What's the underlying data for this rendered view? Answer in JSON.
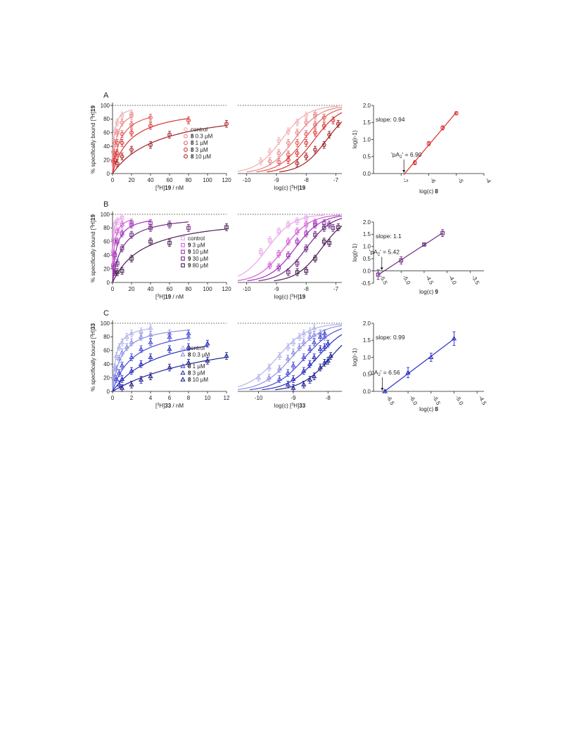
{
  "figure": {
    "colors": {
      "A": [
        "#f0aeb1",
        "#e88486",
        "#e05c5c",
        "#d8312e",
        "#a32225"
      ],
      "B": [
        "#e9a6e8",
        "#d55fd6",
        "#9c34b8",
        "#6e2e82",
        "#4a1f53"
      ],
      "C": [
        "#b3b5ea",
        "#8f91e3",
        "#4b4ed6",
        "#2b2fbf",
        "#212393"
      ]
    },
    "dotted_line_y": 100,
    "panels": [
      {
        "label": "A",
        "saturation": {
          "xlabel_pre": "[",
          "xlabel_sup": "3",
          "xlabel_mid": "H]",
          "xlabel_bold": "19",
          "xlabel_post": " / nM",
          "ylabel_pre": "% specifically bound [",
          "ylabel_sup": "3",
          "ylabel_mid": "H]",
          "ylabel_bold": "19",
          "xlim": [
            0,
            120
          ],
          "xticks": [
            "0",
            "20",
            "40",
            "60",
            "80",
            "100",
            "120"
          ],
          "ylim": [
            0,
            100
          ],
          "yticks": [
            "0",
            "20",
            "40",
            "60",
            "80",
            "100"
          ],
          "marker": "circle",
          "legend": [
            {
              "bold": "",
              "text": "control"
            },
            {
              "bold": "8",
              "text": " 0.3 µM"
            },
            {
              "bold": "8",
              "text": " 1 µM"
            },
            {
              "bold": "8",
              "text": " 3 µM"
            },
            {
              "bold": "8",
              "text": " 10 µM"
            }
          ],
          "series": [
            {
              "points": [
                [
                  0.3,
                  18
                ],
                [
                  0.6,
                  32
                ],
                [
                  1.2,
                  48
                ],
                [
                  2.5,
                  62
                ],
                [
                  5,
                  75
                ],
                [
                  10,
                  85
                ],
                [
                  20,
                  88
                ]
              ],
              "kd": 1.5
            },
            {
              "points": [
                [
                  0.6,
                  18
                ],
                [
                  1.2,
                  30
                ],
                [
                  2.5,
                  45
                ],
                [
                  5,
                  60
                ],
                [
                  10,
                  75
                ],
                [
                  20,
                  85
                ]
              ],
              "kd": 4
            },
            {
              "points": [
                [
                  1.2,
                  17
                ],
                [
                  2.5,
                  28
                ],
                [
                  5,
                  45
                ],
                [
                  10,
                  58
                ],
                [
                  20,
                  72
                ],
                [
                  40,
                  82
                ]
              ],
              "kd": 8.5
            },
            {
              "points": [
                [
                  2.5,
                  20
                ],
                [
                  5,
                  30
                ],
                [
                  10,
                  45
                ],
                [
                  20,
                  60
                ],
                [
                  40,
                  70
                ],
                [
                  80,
                  78
                ]
              ],
              "kd": 19
            },
            {
              "points": [
                [
                  5,
                  15
                ],
                [
                  10,
                  25
                ],
                [
                  20,
                  35
                ],
                [
                  40,
                  42
                ],
                [
                  60,
                  57
                ],
                [
                  120,
                  73
                ]
              ],
              "kd": 50
            }
          ]
        },
        "log": {
          "xlabel_pre": "log(c) [",
          "xlabel_sup": "3",
          "xlabel_mid": "H]",
          "xlabel_bold": "19",
          "xlim": [
            -10.3,
            -6.8
          ],
          "xticks": [
            "-10",
            "-9",
            "-8",
            "-7"
          ],
          "ylim": [
            0,
            100
          ]
        },
        "schild": {
          "xlabel_pre": "log(c) ",
          "xlabel_bold": "8",
          "ylabel": "log(r-1)",
          "xlim": [
            -8,
            -4
          ],
          "xticks": [
            "-7",
            "-6",
            "-5",
            "-4"
          ],
          "ylim": [
            0,
            2
          ],
          "yticks": [
            "0.0",
            "0.5",
            "1.0",
            "1.5",
            "2.0"
          ],
          "points": [
            [
              -6.5,
              0.32
            ],
            [
              -6,
              0.88
            ],
            [
              -5.5,
              1.34
            ],
            [
              -5,
              1.77
            ]
          ],
          "errors": [
            0.06,
            0.06,
            0.06,
            0.05
          ],
          "fit_x": [
            -6.9,
            -5
          ],
          "slope_text": "slope: 0.94",
          "pa2_pre": "'pA",
          "pa2_sub": "2",
          "pa2_post": "' = 6.90",
          "pa2_value": -6.9
        }
      },
      {
        "label": "B",
        "saturation": {
          "xlabel_pre": "[",
          "xlabel_sup": "3",
          "xlabel_mid": "H]",
          "xlabel_bold": "19",
          "xlabel_post": " / nM",
          "ylabel_pre": "% specifically bound [",
          "ylabel_sup": "3",
          "ylabel_mid": "H]",
          "ylabel_bold": "19",
          "xlim": [
            0,
            120
          ],
          "xticks": [
            "0",
            "20",
            "40",
            "60",
            "80",
            "100",
            "120"
          ],
          "ylim": [
            0,
            100
          ],
          "yticks": [
            "0",
            "20",
            "40",
            "60",
            "80",
            "100"
          ],
          "marker": "square",
          "legend": [
            {
              "bold": "",
              "text": "control"
            },
            {
              "bold": "9",
              "text": " 3 µM"
            },
            {
              "bold": "9",
              "text": " 10 µM"
            },
            {
              "bold": "9",
              "text": " 30 µM"
            },
            {
              "bold": "9",
              "text": " 80 µM"
            }
          ],
          "series": [
            {
              "points": [
                [
                  0.3,
                  45
                ],
                [
                  0.6,
                  62
                ],
                [
                  1.2,
                  75
                ],
                [
                  2.5,
                  85
                ],
                [
                  5,
                  90
                ],
                [
                  10,
                  95
                ]
              ],
              "kd": 0.5
            },
            {
              "points": [
                [
                  0.6,
                  25
                ],
                [
                  1.2,
                  42
                ],
                [
                  2.5,
                  60
                ],
                [
                  5,
                  75
                ],
                [
                  10,
                  85
                ],
                [
                  20,
                  88
                ]
              ],
              "kd": 1.8
            },
            {
              "points": [
                [
                  1.2,
                  22
                ],
                [
                  2.5,
                  40
                ],
                [
                  5,
                  60
                ],
                [
                  10,
                  72
                ],
                [
                  20,
                  85
                ],
                [
                  40,
                  87
                ]
              ],
              "kd": 4.2
            },
            {
              "points": [
                [
                  2.5,
                  15
                ],
                [
                  5,
                  28
                ],
                [
                  10,
                  50
                ],
                [
                  20,
                  70
                ],
                [
                  40,
                  80
                ],
                [
                  60,
                  85
                ],
                [
                  80,
                  80
                ]
              ],
              "kd": 10
            },
            {
              "points": [
                [
                  5,
                  15
                ],
                [
                  10,
                  17
                ],
                [
                  20,
                  35
                ],
                [
                  40,
                  60
                ],
                [
                  60,
                  58
                ],
                [
                  120,
                  81
                ]
              ],
              "kd": 33
            }
          ]
        },
        "log": {
          "xlabel_pre": "log(c) [",
          "xlabel_sup": "3",
          "xlabel_mid": "H]",
          "xlabel_bold": "19",
          "xlim": [
            -10.3,
            -6.8
          ],
          "xticks": [
            "-10",
            "-9",
            "-8",
            "-7"
          ],
          "ylim": [
            0,
            100
          ]
        },
        "schild": {
          "xlabel_pre": "log(c) ",
          "xlabel_bold": "9",
          "ylabel": "log(r-1)",
          "xlim": [
            -5.6,
            -3.2
          ],
          "xticks": [
            "-5.5",
            "-5.0",
            "-4.5",
            "-4.0",
            "-3.5"
          ],
          "ylim": [
            -0.5,
            2
          ],
          "yticks": [
            "-0.5",
            "0.0",
            "0.5",
            "1.0",
            "1.5",
            "2.0"
          ],
          "points": [
            [
              -5.5,
              -0.15
            ],
            [
              -5,
              0.43
            ],
            [
              -4.5,
              1.08
            ],
            [
              -4.1,
              1.55
            ]
          ],
          "errors": [
            0.2,
            0.15,
            0.04,
            0.14
          ],
          "fit_x": [
            -5.5,
            -4.1
          ],
          "slope_text": "slope: 1.1",
          "pa2_pre": "'pA",
          "pa2_sub": "2",
          "pa2_post": "' = 5.42",
          "pa2_value": -5.42
        }
      },
      {
        "label": "C",
        "saturation": {
          "xlabel_pre": "[",
          "xlabel_sup": "3",
          "xlabel_mid": "H]",
          "xlabel_bold": "33",
          "xlabel_post": " / nM",
          "ylabel_pre": "% specifically bound [",
          "ylabel_sup": "3",
          "ylabel_mid": "H]",
          "ylabel_bold": "33",
          "xlim": [
            0,
            12
          ],
          "xticks": [
            "0",
            "2",
            "4",
            "6",
            "8",
            "10",
            "12"
          ],
          "ylim": [
            0,
            100
          ],
          "yticks": [
            "0",
            "20",
            "40",
            "60",
            "80",
            "100"
          ],
          "marker": "triangle",
          "legend": [
            {
              "bold": "",
              "text": "control"
            },
            {
              "bold": "8",
              "text": " 0.3 µM"
            },
            {
              "bold": "8",
              "text": " 1 µM"
            },
            {
              "bold": "8",
              "text": " 3 µM"
            },
            {
              "bold": "8",
              "text": " 10 µM"
            }
          ],
          "series": [
            {
              "points": [
                [
                  0.1,
                  20
                ],
                [
                  0.2,
                  35
                ],
                [
                  0.4,
                  52
                ],
                [
                  0.7,
                  65
                ],
                [
                  1,
                  72
                ],
                [
                  1.5,
                  80
                ],
                [
                  2,
                  85
                ],
                [
                  3,
                  88
                ],
                [
                  4,
                  93
                ]
              ],
              "kd": 0.35
            },
            {
              "points": [
                [
                  0.2,
                  20
                ],
                [
                  0.4,
                  33
                ],
                [
                  0.7,
                  48
                ],
                [
                  1,
                  57
                ],
                [
                  1.5,
                  65
                ],
                [
                  2,
                  72
                ],
                [
                  3,
                  80
                ],
                [
                  4,
                  83
                ],
                [
                  6,
                  85
                ],
                [
                  8,
                  80
                ]
              ],
              "kd": 0.9
            },
            {
              "points": [
                [
                  0.4,
                  18
                ],
                [
                  0.7,
                  27
                ],
                [
                  1,
                  38
                ],
                [
                  2,
                  50
                ],
                [
                  3,
                  62
                ],
                [
                  4,
                  72
                ],
                [
                  6,
                  80
                ],
                [
                  8,
                  85
                ]
              ],
              "kd": 2.2
            },
            {
              "points": [
                [
                  0.7,
                  10
                ],
                [
                  1,
                  18
                ],
                [
                  2,
                  30
                ],
                [
                  3,
                  40
                ],
                [
                  4,
                  50
                ],
                [
                  6,
                  62
                ],
                [
                  8,
                  65
                ],
                [
                  10,
                  70
                ]
              ],
              "kd": 5
            },
            {
              "points": [
                [
                  1,
                  5
                ],
                [
                  2,
                  10
                ],
                [
                  3,
                  17
                ],
                [
                  4,
                  22
                ],
                [
                  6,
                  35
                ],
                [
                  8,
                  42
                ],
                [
                  10,
                  45
                ],
                [
                  12,
                  52
                ]
              ],
              "kd": 12
            }
          ]
        },
        "log": {
          "xlabel_pre": "log(c) [",
          "xlabel_sup": "3",
          "xlabel_mid": "H]",
          "xlabel_bold": "33",
          "xlim": [
            -10.6,
            -7.6
          ],
          "xticks": [
            "-10",
            "-9",
            "-8"
          ],
          "ylim": [
            0,
            100
          ]
        },
        "schild": {
          "xlabel_pre": "log(c) ",
          "xlabel_bold": "8",
          "ylabel": "log(r-1)",
          "xlim": [
            -6.75,
            -4.35
          ],
          "xticks": [
            "-6.5",
            "-6.0",
            "-5.5",
            "-5.0",
            "-4.5"
          ],
          "ylim": [
            0,
            2
          ],
          "yticks": [
            "0.0",
            "0.5",
            "1.0",
            "1.5",
            "2.0"
          ],
          "points": [
            [
              -6.5,
              0.0
            ],
            [
              -6,
              0.55
            ],
            [
              -5.5,
              1.0
            ],
            [
              -5,
              1.55
            ]
          ],
          "errors": [
            0.04,
            0.15,
            0.12,
            0.2
          ],
          "fit_x": [
            -6.5,
            -5
          ],
          "slope_text": "slope: 0.99",
          "pa2_pre": "'pA",
          "pa2_sub": "2",
          "pa2_post": "' = 6.56",
          "pa2_value": -6.56
        }
      }
    ]
  }
}
